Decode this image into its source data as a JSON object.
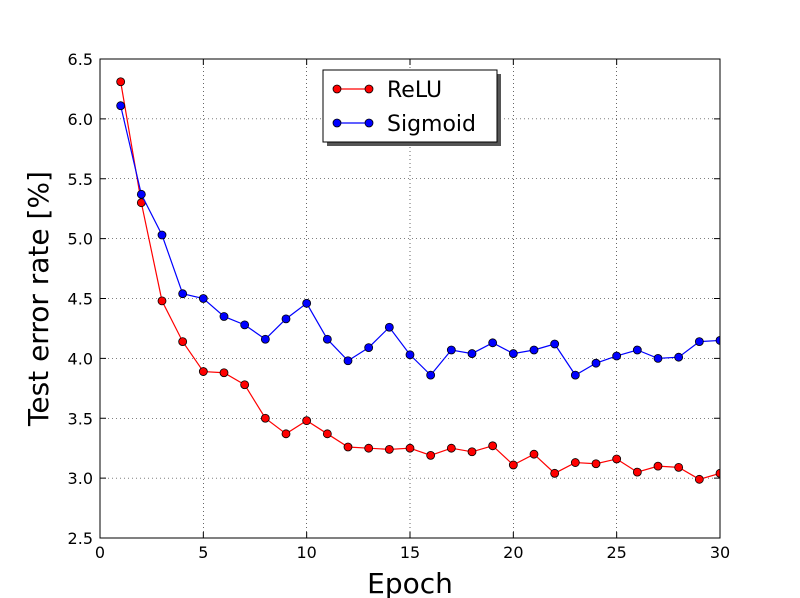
{
  "chart_data": {
    "type": "line",
    "xlabel": "Epoch",
    "ylabel": "Test error rate [%]",
    "xlim": [
      0,
      30
    ],
    "ylim": [
      2.5,
      6.5
    ],
    "xticks": [
      0,
      5,
      10,
      15,
      20,
      25,
      30
    ],
    "yticks": [
      2.5,
      3.0,
      3.5,
      4.0,
      4.5,
      5.0,
      5.5,
      6.0,
      6.5
    ],
    "xtick_labels": [
      "0",
      "5",
      "10",
      "15",
      "20",
      "25",
      "30"
    ],
    "ytick_labels": [
      "2.5",
      "3.0",
      "3.5",
      "4.0",
      "4.5",
      "5.0",
      "5.5",
      "6.0",
      "6.5"
    ],
    "grid": true,
    "legend_position": "top-center",
    "x": [
      1,
      2,
      3,
      4,
      5,
      6,
      7,
      8,
      9,
      10,
      11,
      12,
      13,
      14,
      15,
      16,
      17,
      18,
      19,
      20,
      21,
      22,
      23,
      24,
      25,
      26,
      27,
      28,
      29,
      30
    ],
    "series": [
      {
        "name": "ReLU",
        "color": "#ff0000",
        "values": [
          6.31,
          5.3,
          4.48,
          4.14,
          3.89,
          3.88,
          3.78,
          3.5,
          3.37,
          3.48,
          3.37,
          3.26,
          3.25,
          3.24,
          3.25,
          3.19,
          3.25,
          3.22,
          3.27,
          3.11,
          3.2,
          3.04,
          3.13,
          3.12,
          3.16,
          3.05,
          3.1,
          3.09,
          2.99,
          3.04
        ]
      },
      {
        "name": "Sigmoid",
        "color": "#0000ff",
        "values": [
          6.11,
          5.37,
          5.03,
          4.54,
          4.5,
          4.35,
          4.28,
          4.16,
          4.33,
          4.46,
          4.16,
          3.98,
          4.09,
          4.26,
          4.03,
          3.86,
          4.07,
          4.04,
          4.13,
          4.04,
          4.07,
          4.12,
          3.86,
          3.96,
          4.02,
          4.07,
          4.0,
          4.01,
          4.14,
          4.15
        ]
      }
    ]
  }
}
